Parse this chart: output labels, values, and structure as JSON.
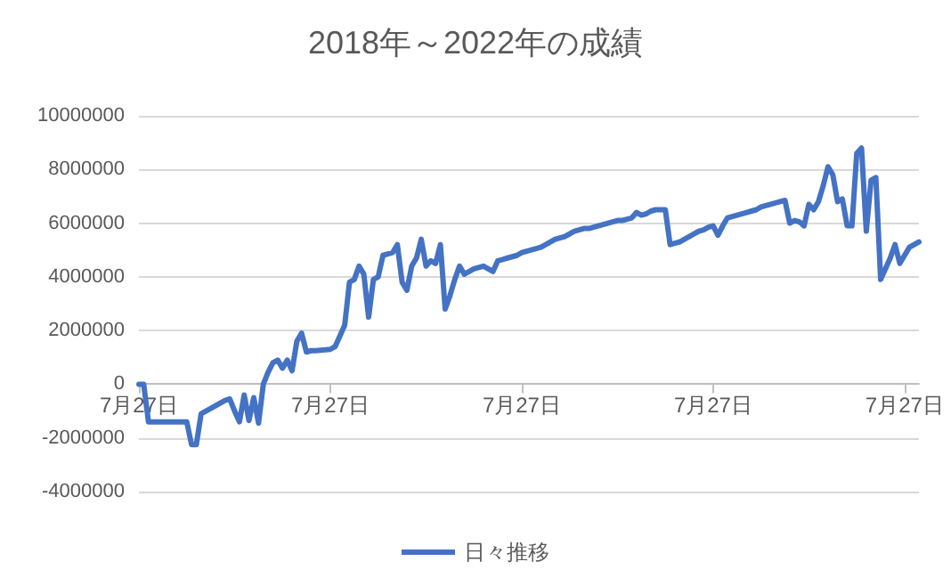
{
  "chart_data": {
    "type": "line",
    "title": "2018年～2022年の成績",
    "categories": [
      "7月27日",
      null,
      null,
      null,
      null,
      null,
      null,
      null,
      null,
      null,
      null,
      null,
      null,
      null,
      null,
      null,
      null,
      null,
      null,
      null,
      null,
      null,
      null,
      null,
      null,
      null,
      null,
      null,
      null,
      null,
      null,
      null,
      null,
      null,
      null,
      null,
      null,
      null,
      null,
      null,
      "7月27日",
      null,
      null,
      null,
      null,
      null,
      null,
      null,
      null,
      null,
      null,
      null,
      null,
      null,
      null,
      null,
      null,
      null,
      null,
      null,
      null,
      null,
      null,
      null,
      null,
      null,
      null,
      null,
      null,
      null,
      null,
      null,
      null,
      null,
      null,
      null,
      null,
      null,
      null,
      null,
      "7月27日",
      null,
      null,
      null,
      null,
      null,
      null,
      null,
      null,
      null,
      null,
      null,
      null,
      null,
      null,
      null,
      null,
      null,
      null,
      null,
      null,
      null,
      null,
      null,
      null,
      null,
      null,
      null,
      null,
      null,
      null,
      null,
      null,
      null,
      null,
      null,
      null,
      null,
      null,
      null,
      "7月27日",
      null,
      null,
      null,
      null,
      null,
      null,
      null,
      null,
      null,
      null,
      null,
      null,
      null,
      null,
      null,
      null,
      null,
      null,
      null,
      null,
      null,
      null,
      null,
      null,
      null,
      null,
      null,
      null,
      null,
      null,
      null,
      null,
      null,
      null,
      null,
      null,
      null,
      null,
      null,
      "7月27日",
      null,
      null,
      null
    ],
    "series": [
      {
        "name": "日々推移",
        "color": "#4472c4",
        "values": [
          0,
          0,
          -1400000,
          -1400000,
          -1400000,
          -1400000,
          -1400000,
          -1400000,
          -1400000,
          -1400000,
          -1400000,
          -2250000,
          -2250000,
          -1100000,
          -1000000,
          -900000,
          -800000,
          -700000,
          -600000,
          -550000,
          -1000000,
          -1400000,
          -400000,
          -1350000,
          -500000,
          -1450000,
          0,
          450000,
          800000,
          900000,
          600000,
          900000,
          500000,
          1600000,
          1900000,
          1200000,
          1250000,
          1250000,
          1270000,
          1280000,
          1300000,
          1400000,
          1800000,
          2200000,
          3800000,
          3900000,
          4400000,
          4100000,
          2500000,
          3900000,
          4000000,
          4800000,
          4850000,
          4900000,
          5200000,
          3800000,
          3500000,
          4400000,
          4700000,
          5400000,
          4400000,
          4600000,
          4500000,
          5200000,
          2800000,
          3300000,
          3900000,
          4400000,
          4100000,
          4200000,
          4300000,
          4350000,
          4400000,
          4300000,
          4200000,
          4600000,
          4650000,
          4700000,
          4750000,
          4800000,
          4900000,
          4950000,
          5000000,
          5050000,
          5100000,
          5200000,
          5300000,
          5400000,
          5450000,
          5500000,
          5600000,
          5700000,
          5750000,
          5800000,
          5800000,
          5850000,
          5900000,
          5950000,
          6000000,
          6050000,
          6100000,
          6100000,
          6150000,
          6200000,
          6400000,
          6300000,
          6350000,
          6450000,
          6500000,
          6500000,
          6500000,
          5200000,
          5250000,
          5300000,
          5400000,
          5500000,
          5600000,
          5700000,
          5750000,
          5850000,
          5900000,
          5550000,
          5900000,
          6200000,
          6250000,
          6300000,
          6350000,
          6400000,
          6450000,
          6500000,
          6600000,
          6650000,
          6700000,
          6750000,
          6800000,
          6850000,
          6000000,
          6100000,
          6050000,
          5900000,
          6700000,
          6500000,
          6800000,
          7400000,
          8100000,
          7800000,
          6800000,
          6900000,
          5900000,
          5900000,
          8600000,
          8800000,
          5700000,
          7600000,
          7700000,
          3900000,
          4300000,
          4700000,
          5200000,
          4500000,
          4800000,
          5100000,
          5200000,
          5300000
        ]
      }
    ],
    "ylim": [
      -4000000,
      10000000
    ],
    "yticks": [
      -4000000,
      -2000000,
      0,
      2000000,
      4000000,
      6000000,
      8000000,
      10000000
    ],
    "grid": "y",
    "legend": "bottom",
    "marker": "none",
    "line_style": "solid"
  }
}
